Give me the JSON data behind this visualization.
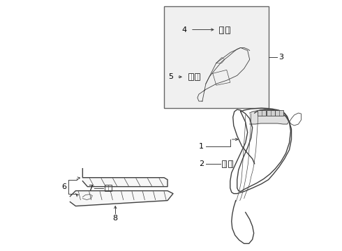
{
  "background_color": "#ffffff",
  "line_color": "#404040",
  "label_color": "#000000",
  "fig_width": 4.9,
  "fig_height": 3.6,
  "dpi": 100
}
